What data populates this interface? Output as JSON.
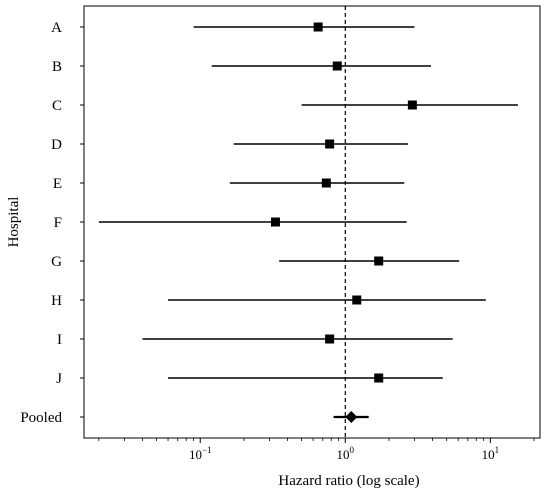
{
  "chart_data": {
    "type": "forest",
    "xscale": "log",
    "xlim": [
      0.0158,
      22
    ],
    "xlabel": "Hazard ratio (log scale)",
    "ylabel": "Hospital",
    "reference_line": 1,
    "x_ticks": [
      {
        "value": 0.1,
        "base": "10",
        "exp": "−1"
      },
      {
        "value": 1,
        "base": "10",
        "exp": "0"
      },
      {
        "value": 10,
        "base": "10",
        "exp": "1"
      }
    ],
    "rows": [
      {
        "label": "A",
        "estimate": 0.65,
        "lower": 0.09,
        "upper": 3.0,
        "marker": "square"
      },
      {
        "label": "B",
        "estimate": 0.88,
        "lower": 0.12,
        "upper": 3.9,
        "marker": "square"
      },
      {
        "label": "C",
        "estimate": 2.9,
        "lower": 0.5,
        "upper": 15.5,
        "marker": "square"
      },
      {
        "label": "D",
        "estimate": 0.78,
        "lower": 0.17,
        "upper": 2.7,
        "marker": "square"
      },
      {
        "label": "E",
        "estimate": 0.74,
        "lower": 0.16,
        "upper": 2.55,
        "marker": "square"
      },
      {
        "label": "F",
        "estimate": 0.33,
        "lower": 0.02,
        "upper": 2.65,
        "marker": "square"
      },
      {
        "label": "G",
        "estimate": 1.7,
        "lower": 0.35,
        "upper": 6.1,
        "marker": "square"
      },
      {
        "label": "H",
        "estimate": 1.2,
        "lower": 0.06,
        "upper": 9.3,
        "marker": "square"
      },
      {
        "label": "I",
        "estimate": 0.78,
        "lower": 0.04,
        "upper": 5.5,
        "marker": "square"
      },
      {
        "label": "J",
        "estimate": 1.7,
        "lower": 0.06,
        "upper": 4.7,
        "marker": "square"
      },
      {
        "label": "Pooled",
        "estimate": 1.1,
        "lower": 0.83,
        "upper": 1.45,
        "marker": "diamond"
      }
    ],
    "grid": false,
    "colors": {
      "marks": "#000000",
      "frame": "#000000"
    }
  }
}
